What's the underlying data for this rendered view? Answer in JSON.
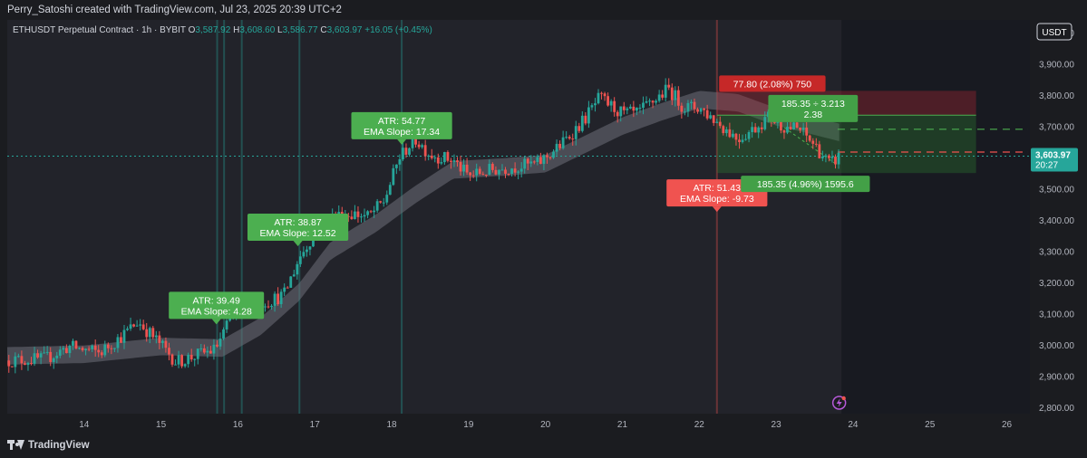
{
  "header": {
    "credit": "Perry_Satoshi created with TradingView.com, Jul 23, 2025 20:39 UTC+2"
  },
  "footer": {
    "brand": "TradingView"
  },
  "colors": {
    "up": "#26a69a",
    "down": "#ef5350",
    "label_green": "#4caf50",
    "label_red": "#f05350",
    "band": "#6e7079",
    "bg": "#22232a",
    "future_bg": "#181a21"
  },
  "chart_data": {
    "type": "candlestick",
    "symbol_line": {
      "name": "ETHUSDT Perpetual Contract · 1h · BYBIT",
      "o_label": "O",
      "o": "3,587.92",
      "h_label": "H",
      "h": "3,608.60",
      "l_label": "L",
      "l": "3,586.77",
      "c_label": "C",
      "c": "3,603.97",
      "change": "+16.05 (+0.45%)"
    },
    "currency": "USDT",
    "y_range": [
      2780,
      4040
    ],
    "y_ticks": [
      "4,000.00",
      "3,900.00",
      "3,800.00",
      "3,700.00",
      "3,600.00",
      "3,500.00",
      "3,400.00",
      "3,300.00",
      "3,200.00",
      "3,100.00",
      "3,000.00",
      "2,900.00",
      "2,800.00"
    ],
    "y_tick_values": [
      4000,
      3900,
      3800,
      3700,
      3600,
      3500,
      3400,
      3300,
      3200,
      3100,
      3000,
      2900,
      2800
    ],
    "x_range": [
      13.0,
      26.3
    ],
    "x_ticks": [
      "14",
      "15",
      "16",
      "17",
      "18",
      "19",
      "20",
      "21",
      "22",
      "23",
      "24",
      "25",
      "26"
    ],
    "x_tick_values": [
      14,
      15,
      16,
      17,
      18,
      19,
      20,
      21,
      22,
      23,
      24,
      25,
      26
    ],
    "last_price": {
      "value": 3603.97,
      "label": "3,603.97",
      "countdown": "20:27"
    },
    "price_path": [
      [
        13.0,
        2950
      ],
      [
        13.5,
        2955
      ],
      [
        13.8,
        2995
      ],
      [
        14.2,
        2975
      ],
      [
        14.5,
        3030
      ],
      [
        14.7,
        3075
      ],
      [
        15.0,
        3000
      ],
      [
        15.2,
        2945
      ],
      [
        15.5,
        2970
      ],
      [
        15.7,
        2985
      ],
      [
        15.9,
        3080
      ],
      [
        16.1,
        3130
      ],
      [
        16.4,
        3140
      ],
      [
        16.6,
        3160
      ],
      [
        16.8,
        3280
      ],
      [
        17.0,
        3360
      ],
      [
        17.2,
        3410
      ],
      [
        17.5,
        3420
      ],
      [
        17.7,
        3410
      ],
      [
        17.9,
        3460
      ],
      [
        18.1,
        3600
      ],
      [
        18.3,
        3660
      ],
      [
        18.5,
        3610
      ],
      [
        18.8,
        3590
      ],
      [
        19.0,
        3540
      ],
      [
        19.3,
        3560
      ],
      [
        19.6,
        3570
      ],
      [
        19.9,
        3580
      ],
      [
        20.2,
        3640
      ],
      [
        20.5,
        3720
      ],
      [
        20.7,
        3790
      ],
      [
        21.0,
        3740
      ],
      [
        21.2,
        3740
      ],
      [
        21.4,
        3780
      ],
      [
        21.6,
        3820
      ],
      [
        21.8,
        3760
      ],
      [
        22.0,
        3760
      ],
      [
        22.2,
        3720
      ],
      [
        22.5,
        3660
      ],
      [
        22.7,
        3690
      ],
      [
        22.9,
        3730
      ],
      [
        23.1,
        3700
      ],
      [
        23.3,
        3690
      ],
      [
        23.5,
        3640
      ],
      [
        23.7,
        3575
      ],
      [
        23.82,
        3604
      ]
    ],
    "ema_band_center": [
      [
        13.0,
        2965
      ],
      [
        14.0,
        2970
      ],
      [
        15.0,
        2995
      ],
      [
        15.8,
        2990
      ],
      [
        16.3,
        3060
      ],
      [
        16.8,
        3170
      ],
      [
        17.2,
        3300
      ],
      [
        17.8,
        3390
      ],
      [
        18.3,
        3480
      ],
      [
        18.8,
        3560
      ],
      [
        19.5,
        3570
      ],
      [
        20.0,
        3580
      ],
      [
        20.5,
        3640
      ],
      [
        21.0,
        3700
      ],
      [
        21.5,
        3745
      ],
      [
        22.0,
        3785
      ],
      [
        22.5,
        3775
      ],
      [
        23.0,
        3730
      ],
      [
        23.5,
        3700
      ],
      [
        23.82,
        3680
      ]
    ],
    "signal_lines": [
      {
        "x": 15.73,
        "color": "#26a69a"
      },
      {
        "x": 15.82,
        "color": "#26a69a"
      },
      {
        "x": 16.05,
        "color": "#26a69a"
      },
      {
        "x": 16.8,
        "color": "#26a69a"
      },
      {
        "x": 18.13,
        "color": "#26a69a"
      },
      {
        "x": 22.23,
        "color": "#ef5350"
      }
    ],
    "annotations": [
      {
        "atr": "ATR: 39.49",
        "slope": "EMA Slope: 4.28",
        "x": 15.72,
        "y": 3170,
        "tone": "green",
        "pointer": "down"
      },
      {
        "atr": "ATR: 38.87",
        "slope": "EMA Slope: 12.52",
        "x": 16.78,
        "y": 3420,
        "tone": "green",
        "pointer": "down"
      },
      {
        "atr": "ATR: 54.77",
        "slope": "EMA Slope: 17.34",
        "x": 18.13,
        "y": 3745,
        "tone": "green",
        "pointer": "down"
      },
      {
        "atr": "ATR: 51.43",
        "slope": "EMA Slope: -9.73",
        "x": 22.23,
        "y": 3530,
        "tone": "red",
        "pointer": "down"
      }
    ],
    "position": {
      "x_start": 22.23,
      "x_end": 25.6,
      "entry": 3735,
      "stop": 3813,
      "target": 3550,
      "stop_label": "77.80 (2.08%) 750",
      "target_label": "185.35 (4.96%) 1595.6",
      "rr_label_1": "185.35 ÷ 3.213",
      "rr_label_2": "2.38",
      "dashed_green": 3690,
      "dashed_red": 3617
    },
    "future_start_x": 23.85
  }
}
